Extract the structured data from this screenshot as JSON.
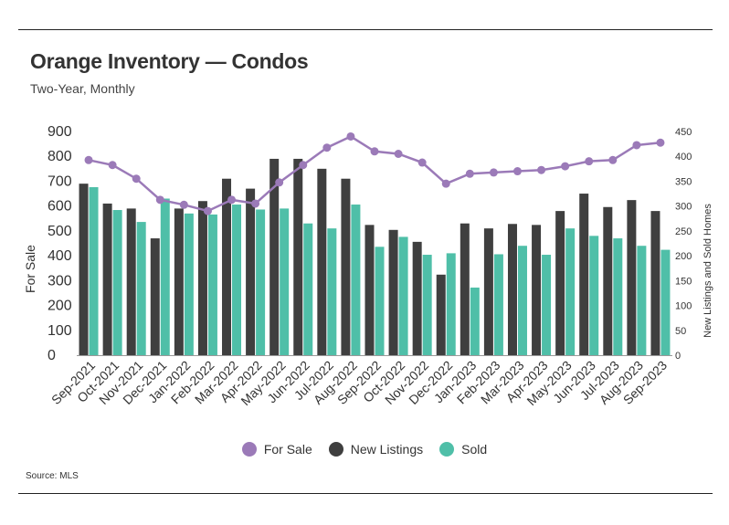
{
  "title": "Orange Inventory — Condos",
  "subtitle": "Two-Year, Monthly",
  "source": "Source: MLS",
  "colors": {
    "for_sale": "#9b7ab8",
    "new_listings": "#3f3f3f",
    "sold": "#4fbfa8"
  },
  "chart_data": {
    "type": "bar",
    "categories": [
      "Sep-2021",
      "Oct-2021",
      "Nov-2021",
      "Dec-2021",
      "Jan-2022",
      "Feb-2022",
      "Mar-2022",
      "Apr-2022",
      "May-2022",
      "Jun-2022",
      "Jul-2022",
      "Aug-2022",
      "Sep-2022",
      "Oct-2022",
      "Nov-2022",
      "Dec-2022",
      "Jan-2023",
      "Feb-2023",
      "Mar-2023",
      "Apr-2023",
      "May-2023",
      "Jun-2023",
      "Jul-2023",
      "Aug-2023",
      "Sep-2023"
    ],
    "ylabel": "For Sale",
    "y2label": "New Listings and Sold Homes",
    "ylim": [
      0,
      900
    ],
    "y2lim": [
      0,
      450
    ],
    "yticks": [
      "0",
      "100",
      "200",
      "300",
      "400",
      "500",
      "600",
      "700",
      "800",
      "900"
    ],
    "y2ticks": [
      "0",
      "50",
      "100",
      "150",
      "200",
      "250",
      "300",
      "350",
      "400",
      "450"
    ],
    "legend_position": "bottom",
    "series": [
      {
        "name": "For Sale",
        "type": "line",
        "axis": "left",
        "values": [
          785,
          765,
          710,
          625,
          605,
          580,
          625,
          610,
          695,
          765,
          835,
          880,
          820,
          810,
          775,
          690,
          730,
          735,
          740,
          745,
          760,
          780,
          785,
          845,
          855
        ]
      },
      {
        "name": "New Listings",
        "type": "bar",
        "axis": "right",
        "values": [
          345,
          305,
          295,
          235,
          295,
          310,
          355,
          335,
          395,
          395,
          375,
          355,
          262,
          252,
          228,
          162,
          265,
          255,
          264,
          262,
          290,
          325,
          298,
          312,
          290
        ]
      },
      {
        "name": "Sold",
        "type": "bar",
        "axis": "right",
        "values": [
          338,
          292,
          268,
          315,
          285,
          283,
          303,
          293,
          295,
          265,
          255,
          303,
          218,
          238,
          202,
          205,
          136,
          203,
          220,
          202,
          255,
          240,
          235,
          220,
          212
        ]
      }
    ]
  }
}
